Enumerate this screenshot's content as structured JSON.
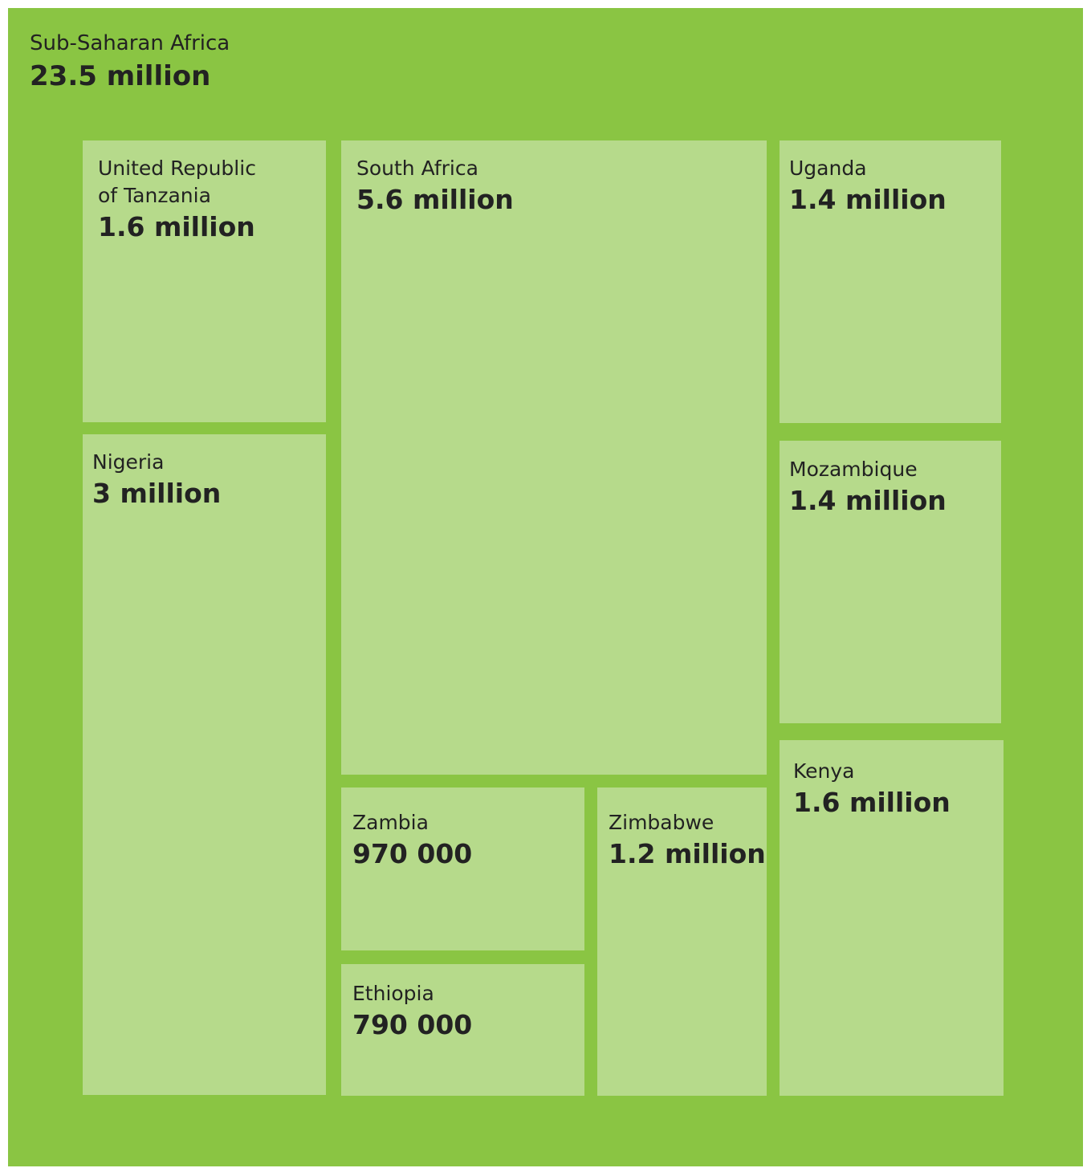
{
  "chart_data": {
    "type": "treemap",
    "title": "",
    "root": {
      "name": "Sub-Saharan Africa",
      "value_label": "23.5 million",
      "value": 23500000
    },
    "children": [
      {
        "id": "tanzania",
        "name": "United Republic\nof Tanzania",
        "value_label": "1.6 million",
        "value": 1600000
      },
      {
        "id": "nigeria",
        "name": "Nigeria",
        "value_label": "3 million",
        "value": 3000000
      },
      {
        "id": "southafrica",
        "name": "South Africa",
        "value_label": "5.6 million",
        "value": 5600000
      },
      {
        "id": "zambia",
        "name": "Zambia",
        "value_label": "970 000",
        "value": 970000
      },
      {
        "id": "ethiopia",
        "name": "Ethiopia",
        "value_label": "790 000",
        "value": 790000
      },
      {
        "id": "zimbabwe",
        "name": "Zimbabwe",
        "value_label": "1.2 million",
        "value": 1200000
      },
      {
        "id": "uganda",
        "name": "Uganda",
        "value_label": "1.4 million",
        "value": 1400000
      },
      {
        "id": "mozambique",
        "name": "Mozambique",
        "value_label": "1.4 million",
        "value": 1400000
      },
      {
        "id": "kenya",
        "name": "Kenya",
        "value_label": "1.6 million",
        "value": 1600000
      }
    ],
    "colors": {
      "background": "#8ac543",
      "cell": "#b6da8b",
      "text": "#222222"
    }
  }
}
